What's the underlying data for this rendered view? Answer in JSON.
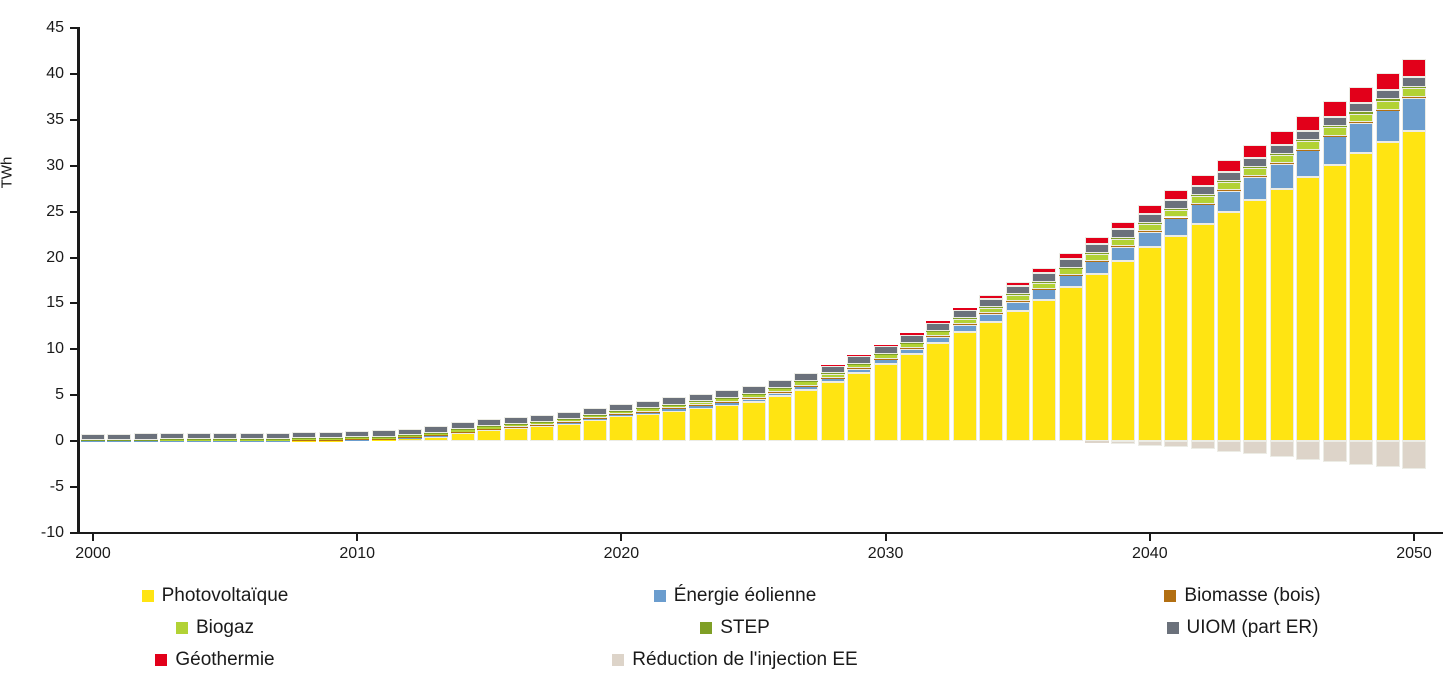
{
  "chart_data": {
    "type": "bar",
    "subtype": "stacked-column",
    "title": "",
    "ylabel": "TWh",
    "xlabel": "",
    "ylim": [
      -10,
      45
    ],
    "ytick_step": 5,
    "grid": false,
    "legend_position": "bottom",
    "background": "#ffffff",
    "axis_color": "#1a1a1a",
    "xticks": [
      2000,
      2010,
      2020,
      2030,
      2040,
      2050
    ],
    "years": [
      2000,
      2001,
      2002,
      2003,
      2004,
      2005,
      2006,
      2007,
      2008,
      2009,
      2010,
      2011,
      2012,
      2013,
      2014,
      2015,
      2016,
      2017,
      2018,
      2019,
      2020,
      2021,
      2022,
      2023,
      2024,
      2025,
      2026,
      2027,
      2028,
      2029,
      2030,
      2031,
      2032,
      2033,
      2034,
      2035,
      2036,
      2037,
      2038,
      2039,
      2040,
      2041,
      2042,
      2043,
      2044,
      2045,
      2046,
      2047,
      2048,
      2049,
      2050
    ],
    "series": [
      {
        "name": "Photovoltaïque",
        "color": "#FFE412",
        "values": [
          0.01,
          0.01,
          0.02,
          0.02,
          0.02,
          0.03,
          0.03,
          0.04,
          0.05,
          0.07,
          0.1,
          0.15,
          0.3,
          0.5,
          0.9,
          1.2,
          1.4,
          1.6,
          1.9,
          2.3,
          2.7,
          3.0,
          3.3,
          3.6,
          3.95,
          4.3,
          4.9,
          5.6,
          6.4,
          7.4,
          8.4,
          9.5,
          10.7,
          11.9,
          13.0,
          14.2,
          15.4,
          16.8,
          18.2,
          19.6,
          21.1,
          22.4,
          23.7,
          25.0,
          26.3,
          27.5,
          28.8,
          30.1,
          31.4,
          32.6,
          33.8
        ]
      },
      {
        "name": "Énergie éolienne",
        "color": "#6B9DCE",
        "values": [
          0.01,
          0.01,
          0.01,
          0.01,
          0.01,
          0.01,
          0.02,
          0.02,
          0.03,
          0.03,
          0.04,
          0.05,
          0.06,
          0.07,
          0.08,
          0.1,
          0.1,
          0.12,
          0.12,
          0.13,
          0.15,
          0.17,
          0.2,
          0.23,
          0.27,
          0.32,
          0.36,
          0.4,
          0.43,
          0.46,
          0.5,
          0.58,
          0.66,
          0.75,
          0.85,
          1.0,
          1.12,
          1.25,
          1.4,
          1.55,
          1.7,
          1.9,
          2.1,
          2.3,
          2.5,
          2.7,
          2.9,
          3.1,
          3.25,
          3.45,
          3.6
        ]
      },
      {
        "name": "Biomasse (bois)",
        "color": "#B26F12",
        "values": [
          0,
          0,
          0,
          0,
          0,
          0,
          0,
          0,
          0.03,
          0.04,
          0.05,
          0.06,
          0.06,
          0.06,
          0.06,
          0.06,
          0.06,
          0.06,
          0.06,
          0.06,
          0.06,
          0.06,
          0.06,
          0.06,
          0.06,
          0.06,
          0.06,
          0.06,
          0.06,
          0.06,
          0.06,
          0.06,
          0.06,
          0.06,
          0.06,
          0.06,
          0.06,
          0.06,
          0.06,
          0.06,
          0.06,
          0.06,
          0.06,
          0.06,
          0.06,
          0.06,
          0.06,
          0.06,
          0.06,
          0.06,
          0.06
        ]
      },
      {
        "name": "Biogaz",
        "color": "#B2D235",
        "values": [
          0.12,
          0.13,
          0.13,
          0.14,
          0.14,
          0.15,
          0.16,
          0.17,
          0.18,
          0.19,
          0.2,
          0.21,
          0.23,
          0.24,
          0.26,
          0.28,
          0.3,
          0.31,
          0.33,
          0.34,
          0.36,
          0.37,
          0.39,
          0.4,
          0.42,
          0.44,
          0.45,
          0.46,
          0.47,
          0.49,
          0.5,
          0.53,
          0.56,
          0.59,
          0.62,
          0.65,
          0.68,
          0.71,
          0.74,
          0.77,
          0.8,
          0.82,
          0.84,
          0.86,
          0.88,
          0.9,
          0.92,
          0.94,
          0.96,
          0.98,
          1.0
        ]
      },
      {
        "name": "STEP",
        "color": "#7F9F26",
        "values": [
          0.02,
          0.02,
          0.02,
          0.02,
          0.02,
          0.02,
          0.02,
          0.02,
          0.02,
          0.02,
          0.02,
          0.02,
          0.02,
          0.02,
          0.02,
          0.02,
          0.02,
          0.02,
          0.02,
          0.02,
          0.04,
          0.04,
          0.04,
          0.04,
          0.04,
          0.04,
          0.04,
          0.04,
          0.04,
          0.04,
          0.05,
          0.06,
          0.06,
          0.07,
          0.07,
          0.08,
          0.08,
          0.09,
          0.09,
          0.1,
          0.1,
          0.1,
          0.11,
          0.11,
          0.12,
          0.12,
          0.13,
          0.13,
          0.14,
          0.14,
          0.15
        ]
      },
      {
        "name": "UIOM (part ER)",
        "color": "#6B717B",
        "values": [
          0.65,
          0.65,
          0.66,
          0.66,
          0.67,
          0.67,
          0.68,
          0.68,
          0.69,
          0.69,
          0.7,
          0.7,
          0.71,
          0.71,
          0.72,
          0.72,
          0.73,
          0.74,
          0.75,
          0.76,
          0.78,
          0.79,
          0.8,
          0.8,
          0.8,
          0.8,
          0.81,
          0.82,
          0.83,
          0.84,
          0.85,
          0.86,
          0.88,
          0.9,
          0.92,
          0.94,
          0.95,
          0.96,
          0.97,
          0.98,
          1.0,
          1.0,
          1.0,
          1.0,
          1.0,
          1.0,
          1.0,
          1.0,
          1.0,
          1.0,
          1.0
        ]
      },
      {
        "name": "Géothermie",
        "color": "#E2001A",
        "values": [
          0,
          0,
          0,
          0,
          0,
          0,
          0,
          0,
          0,
          0,
          0,
          0,
          0,
          0,
          0,
          0,
          0,
          0,
          0,
          0,
          0,
          0,
          0,
          0,
          0,
          0,
          0,
          0,
          0.03,
          0.06,
          0.1,
          0.15,
          0.2,
          0.27,
          0.35,
          0.45,
          0.55,
          0.65,
          0.75,
          0.85,
          0.95,
          1.05,
          1.15,
          1.27,
          1.4,
          1.5,
          1.6,
          1.7,
          1.8,
          1.9,
          2.0
        ]
      },
      {
        "name": "Réduction de l'injection EE",
        "color": "#DDD4C9",
        "values": [
          0,
          0,
          0,
          0,
          0,
          0,
          0,
          0,
          0,
          0,
          0,
          0,
          0,
          0,
          0,
          0,
          0,
          0,
          0,
          0,
          0,
          0,
          0,
          0,
          0,
          0,
          0,
          0,
          0,
          0,
          0,
          0,
          0,
          0,
          0,
          0,
          0,
          0,
          -0.15,
          -0.3,
          -0.5,
          -0.6,
          -0.9,
          -1.2,
          -1.4,
          -1.7,
          -2.0,
          -2.3,
          -2.55,
          -2.8,
          -3.0
        ]
      }
    ]
  }
}
